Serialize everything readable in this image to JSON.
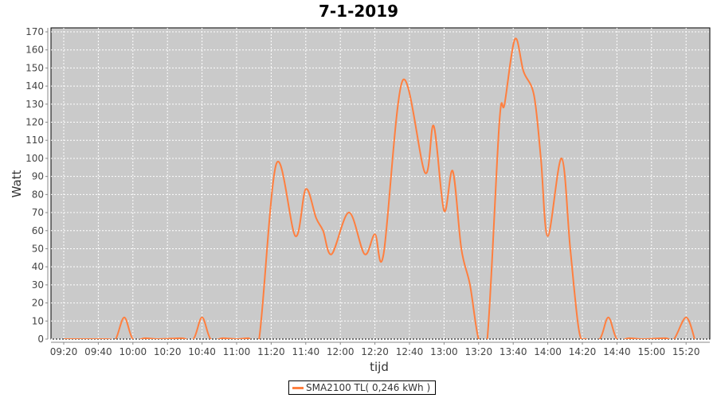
{
  "chart_data": {
    "type": "line",
    "title": "7-1-2019",
    "xlabel": "tijd",
    "ylabel": "Watt",
    "ylim": [
      0,
      170
    ],
    "yticks": [
      0,
      10,
      20,
      30,
      40,
      50,
      60,
      70,
      80,
      90,
      100,
      110,
      120,
      130,
      140,
      150,
      160,
      170
    ],
    "xticks": [
      "09:20",
      "09:40",
      "10:00",
      "10:20",
      "10:40",
      "11:00",
      "11:20",
      "11:40",
      "12:00",
      "12:20",
      "12:40",
      "13:00",
      "13:20",
      "13:40",
      "14:00",
      "14:20",
      "14:40",
      "15:00",
      "15:20"
    ],
    "grid": true,
    "legend_placement": "bottom",
    "colors": {
      "series": "#ff7f3f",
      "plot_bg": "#cacaca",
      "grid": "#ffffff"
    },
    "series": [
      {
        "name": "SMA2100 TL( 0,246 kWh )",
        "points": [
          [
            "09:20",
            0
          ],
          [
            "09:45",
            0
          ],
          [
            "09:50",
            0
          ],
          [
            "09:55",
            12
          ],
          [
            "10:00",
            0
          ],
          [
            "10:07",
            0.5
          ],
          [
            "10:15",
            0
          ],
          [
            "10:28",
            0.5
          ],
          [
            "10:35",
            0
          ],
          [
            "10:40",
            12
          ],
          [
            "10:45",
            0
          ],
          [
            "10:52",
            0.5
          ],
          [
            "11:00",
            0
          ],
          [
            "11:07",
            0.5
          ],
          [
            "11:13",
            0
          ],
          [
            "11:23",
            97
          ],
          [
            "11:34",
            57
          ],
          [
            "11:40",
            83
          ],
          [
            "11:46",
            67
          ],
          [
            "11:50",
            60
          ],
          [
            "11:55",
            47
          ],
          [
            "12:05",
            70
          ],
          [
            "12:14",
            47
          ],
          [
            "12:20",
            58
          ],
          [
            "12:25",
            47
          ],
          [
            "12:36",
            143
          ],
          [
            "12:49",
            92
          ],
          [
            "12:54",
            118
          ],
          [
            "13:00",
            71
          ],
          [
            "13:05",
            93
          ],
          [
            "13:10",
            50
          ],
          [
            "13:15",
            30
          ],
          [
            "13:20",
            0
          ],
          [
            "13:25",
            0
          ],
          [
            "13:32",
            120
          ],
          [
            "13:35",
            130
          ],
          [
            "13:41",
            166
          ],
          [
            "13:46",
            148
          ],
          [
            "13:52",
            135
          ],
          [
            "13:56",
            100
          ],
          [
            "14:00",
            57
          ],
          [
            "14:08",
            100
          ],
          [
            "14:13",
            50
          ],
          [
            "14:18",
            5
          ],
          [
            "14:22",
            0
          ],
          [
            "14:30",
            0
          ],
          [
            "14:35",
            12
          ],
          [
            "14:40",
            0
          ],
          [
            "14:47",
            0.5
          ],
          [
            "14:55",
            0
          ],
          [
            "15:08",
            0.5
          ],
          [
            "15:13",
            0
          ],
          [
            "15:20",
            12
          ],
          [
            "15:25",
            0
          ]
        ]
      }
    ]
  }
}
